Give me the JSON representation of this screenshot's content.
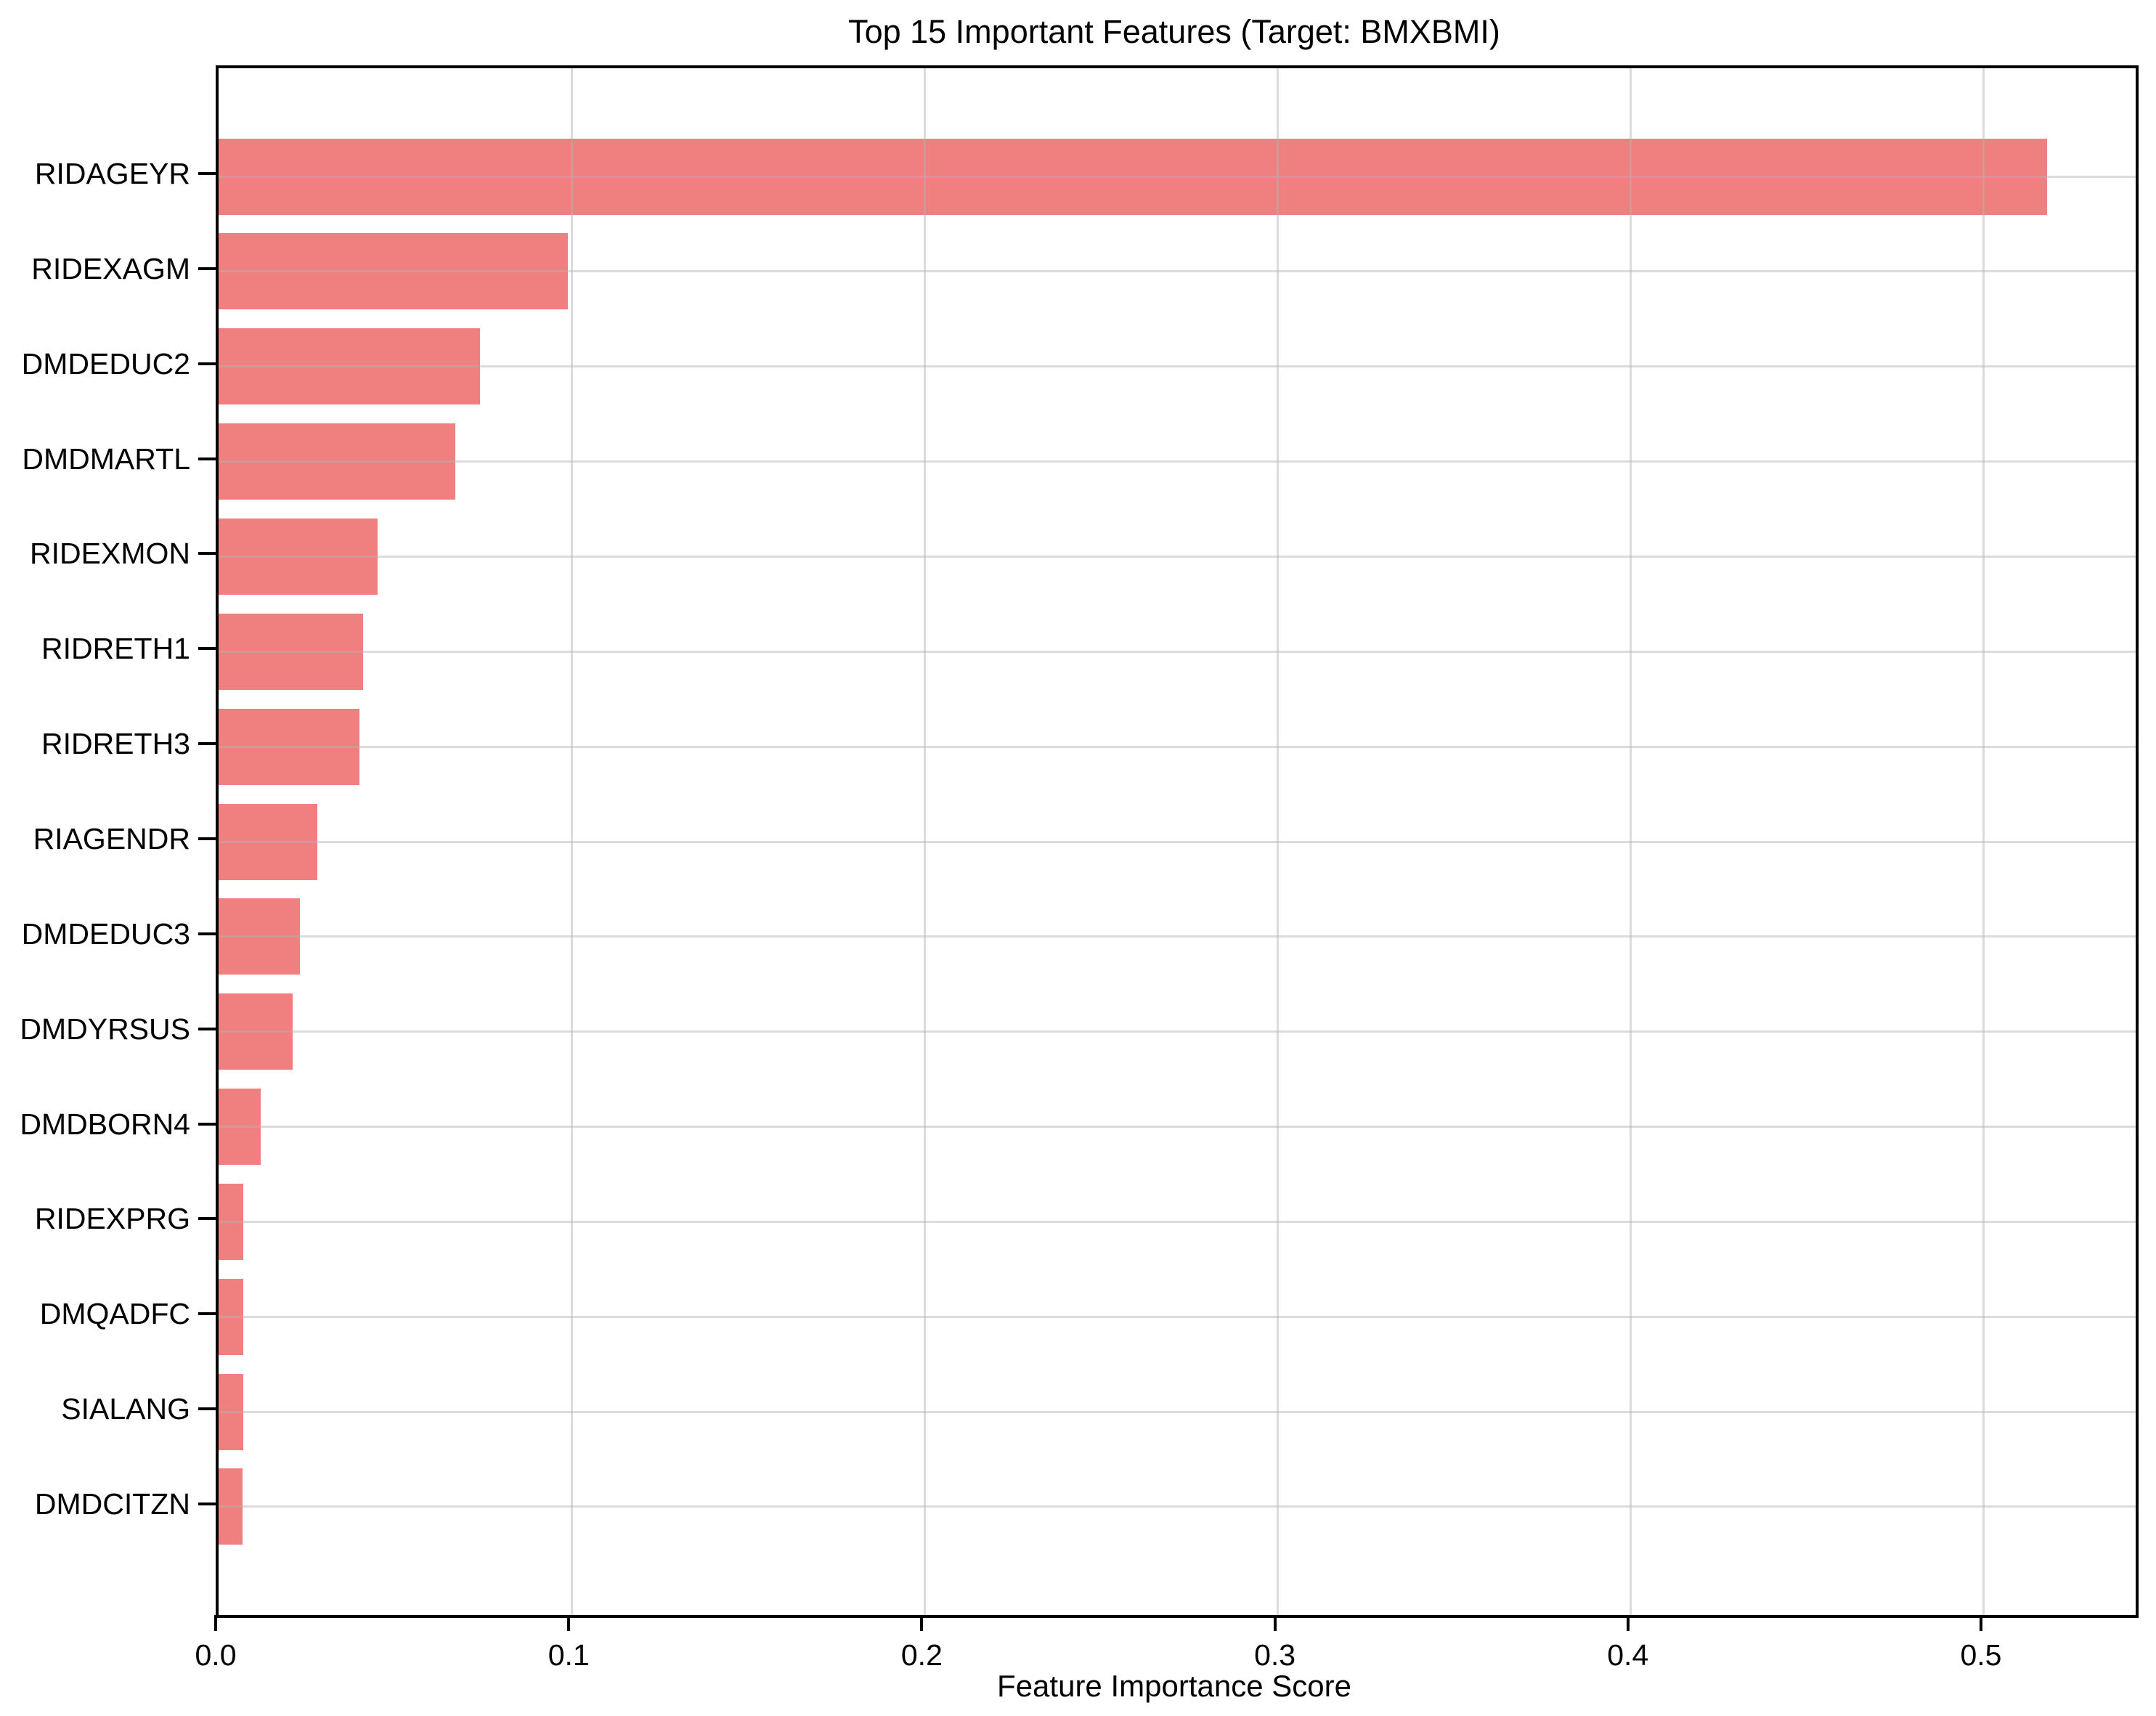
{
  "figure": {
    "background_color": "#ffffff",
    "frame_color": "#000000"
  },
  "chart_data": {
    "type": "bar",
    "orientation": "horizontal",
    "title": "Top 15 Important Features (Target: BMXBMI)",
    "xlabel": "Feature Importance Score",
    "ylabel": "",
    "categories": [
      "RIDAGEYR",
      "RIDEXAGM",
      "DMDEDUC2",
      "DMDMARTL",
      "RIDEXMON",
      "RIDRETH1",
      "RIDRETH3",
      "RIAGENDR",
      "DMDEDUC3",
      "DMDYRSUS",
      "DMDBORN4",
      "RIDEXPRG",
      "DMQADFC",
      "SIALANG",
      "DMDCITZN"
    ],
    "values": [
      0.518,
      0.099,
      0.074,
      0.067,
      0.045,
      0.041,
      0.04,
      0.028,
      0.023,
      0.021,
      0.012,
      0.007,
      0.0069,
      0.0069,
      0.0068
    ],
    "xlim": [
      0,
      0.543
    ],
    "xticks": [
      0.0,
      0.1,
      0.2,
      0.3,
      0.4,
      0.5
    ],
    "xtick_labels": [
      "0.0",
      "0.1",
      "0.2",
      "0.3",
      "0.4",
      "0.5"
    ],
    "bar_color": "#f08080",
    "grid": true,
    "grid_color": "#b2b2b2",
    "legend": null
  }
}
